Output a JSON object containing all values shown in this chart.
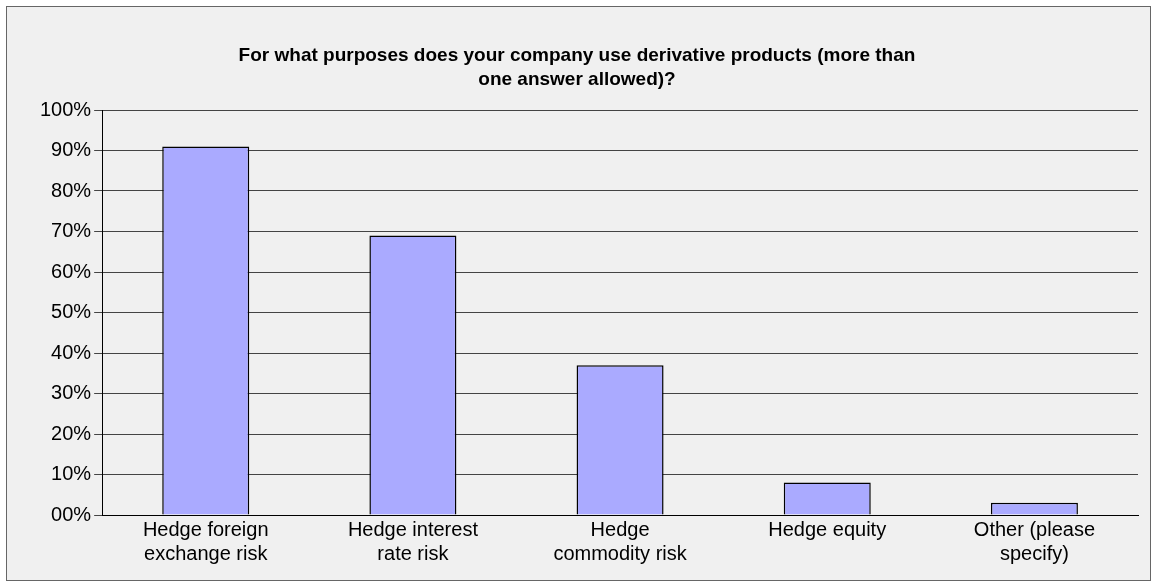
{
  "chart_data": {
    "type": "bar",
    "title": "For what purposes does your company use derivative products (more than one answer allowed)?",
    "categories": [
      "Hedge foreign exchange risk",
      "Hedge interest rate risk",
      "Hedge commodity risk",
      "Hedge equity",
      "Other (please specify)"
    ],
    "values": [
      91,
      69,
      37,
      8,
      3
    ],
    "color": "#aaaaff",
    "ylim": [
      0,
      100
    ],
    "yticks": [
      {
        "value": 0,
        "label": "00%"
      },
      {
        "value": 10,
        "label": "10%"
      },
      {
        "value": 20,
        "label": "20%"
      },
      {
        "value": 30,
        "label": "30%"
      },
      {
        "value": 40,
        "label": "40%"
      },
      {
        "value": 50,
        "label": "50%"
      },
      {
        "value": 60,
        "label": "60%"
      },
      {
        "value": 70,
        "label": "70%"
      },
      {
        "value": 80,
        "label": "80%"
      },
      {
        "value": 90,
        "label": "90%"
      },
      {
        "value": 100,
        "label": "100%"
      }
    ],
    "grid": "y"
  }
}
